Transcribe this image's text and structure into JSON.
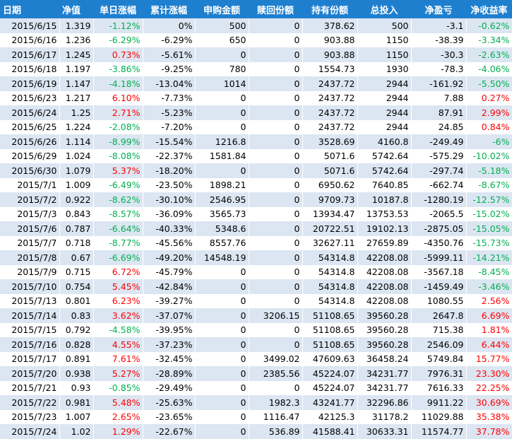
{
  "headers": [
    "日期",
    "净值",
    "单日涨幅",
    "累计涨幅",
    "申购金额",
    "赎回份额",
    "持有份额",
    "总投入",
    "净盈亏",
    "净收益率"
  ],
  "rows": [
    [
      "2015/6/15",
      "1.319",
      "-1.12%",
      "0%",
      "500",
      "0",
      "378.62",
      "500",
      "-3.1",
      "-0.62%"
    ],
    [
      "2015/6/16",
      "1.236",
      "-6.29%",
      "-6.29%",
      "650",
      "0",
      "903.88",
      "1150",
      "-38.39",
      "-3.34%"
    ],
    [
      "2015/6/17",
      "1.245",
      "0.73%",
      "-5.61%",
      "0",
      "0",
      "903.88",
      "1150",
      "-30.3",
      "-2.63%"
    ],
    [
      "2015/6/18",
      "1.197",
      "-3.86%",
      "-9.25%",
      "780",
      "0",
      "1554.73",
      "1930",
      "-78.3",
      "-4.06%"
    ],
    [
      "2015/6/19",
      "1.147",
      "-4.18%",
      "-13.04%",
      "1014",
      "0",
      "2437.72",
      "2944",
      "-161.92",
      "-5.50%"
    ],
    [
      "2015/6/23",
      "1.217",
      "6.10%",
      "-7.73%",
      "0",
      "0",
      "2437.72",
      "2944",
      "7.88",
      "0.27%"
    ],
    [
      "2015/6/24",
      "1.25",
      "2.71%",
      "-5.23%",
      "0",
      "0",
      "2437.72",
      "2944",
      "87.91",
      "2.99%"
    ],
    [
      "2015/6/25",
      "1.224",
      "-2.08%",
      "-7.20%",
      "0",
      "0",
      "2437.72",
      "2944",
      "24.85",
      "0.84%"
    ],
    [
      "2015/6/26",
      "1.114",
      "-8.99%",
      "-15.54%",
      "1216.8",
      "0",
      "3528.69",
      "4160.8",
      "-249.49",
      "-6%"
    ],
    [
      "2015/6/29",
      "1.024",
      "-8.08%",
      "-22.37%",
      "1581.84",
      "0",
      "5071.6",
      "5742.64",
      "-575.29",
      "-10.02%"
    ],
    [
      "2015/6/30",
      "1.079",
      "5.37%",
      "-18.20%",
      "0",
      "0",
      "5071.6",
      "5742.64",
      "-297.74",
      "-5.18%"
    ],
    [
      "2015/7/1",
      "1.009",
      "-6.49%",
      "-23.50%",
      "1898.21",
      "0",
      "6950.62",
      "7640.85",
      "-662.74",
      "-8.67%"
    ],
    [
      "2015/7/2",
      "0.922",
      "-8.62%",
      "-30.10%",
      "2546.95",
      "0",
      "9709.73",
      "10187.8",
      "-1280.19",
      "-12.57%"
    ],
    [
      "2015/7/3",
      "0.843",
      "-8.57%",
      "-36.09%",
      "3565.73",
      "0",
      "13934.47",
      "13753.53",
      "-2065.5",
      "-15.02%"
    ],
    [
      "2015/7/6",
      "0.787",
      "-6.64%",
      "-40.33%",
      "5348.6",
      "0",
      "20722.51",
      "19102.13",
      "-2875.05",
      "-15.05%"
    ],
    [
      "2015/7/7",
      "0.718",
      "-8.77%",
      "-45.56%",
      "8557.76",
      "0",
      "32627.11",
      "27659.89",
      "-4350.76",
      "-15.73%"
    ],
    [
      "2015/7/8",
      "0.67",
      "-6.69%",
      "-49.20%",
      "14548.19",
      "0",
      "54314.8",
      "42208.08",
      "-5999.11",
      "-14.21%"
    ],
    [
      "2015/7/9",
      "0.715",
      "6.72%",
      "-45.79%",
      "0",
      "0",
      "54314.8",
      "42208.08",
      "-3567.18",
      "-8.45%"
    ],
    [
      "2015/7/10",
      "0.754",
      "5.45%",
      "-42.84%",
      "0",
      "0",
      "54314.8",
      "42208.08",
      "-1459.49",
      "-3.46%"
    ],
    [
      "2015/7/13",
      "0.801",
      "6.23%",
      "-39.27%",
      "0",
      "0",
      "54314.8",
      "42208.08",
      "1080.55",
      "2.56%"
    ],
    [
      "2015/7/14",
      "0.83",
      "3.62%",
      "-37.07%",
      "0",
      "3206.15",
      "51108.65",
      "39560.28",
      "2647.8",
      "6.69%"
    ],
    [
      "2015/7/15",
      "0.792",
      "-4.58%",
      "-39.95%",
      "0",
      "0",
      "51108.65",
      "39560.28",
      "715.38",
      "1.81%"
    ],
    [
      "2015/7/16",
      "0.828",
      "4.55%",
      "-37.23%",
      "0",
      "0",
      "51108.65",
      "39560.28",
      "2546.09",
      "6.44%"
    ],
    [
      "2015/7/17",
      "0.891",
      "7.61%",
      "-32.45%",
      "0",
      "3499.02",
      "47609.63",
      "36458.24",
      "5749.84",
      "15.77%"
    ],
    [
      "2015/7/20",
      "0.938",
      "5.27%",
      "-28.89%",
      "0",
      "2385.56",
      "45224.07",
      "34231.77",
      "7976.31",
      "23.30%"
    ],
    [
      "2015/7/21",
      "0.93",
      "-0.85%",
      "-29.49%",
      "0",
      "0",
      "45224.07",
      "34231.77",
      "7616.33",
      "22.25%"
    ],
    [
      "2015/7/22",
      "0.981",
      "5.48%",
      "-25.63%",
      "0",
      "1982.3",
      "43241.77",
      "32296.86",
      "9911.22",
      "30.69%"
    ],
    [
      "2015/7/23",
      "1.007",
      "2.65%",
      "-23.65%",
      "0",
      "1116.47",
      "42125.3",
      "31178.2",
      "11029.88",
      "35.38%"
    ],
    [
      "2015/7/24",
      "1.02",
      "1.29%",
      "-22.67%",
      "0",
      "536.89",
      "41588.41",
      "30633.31",
      "11574.77",
      "37.78%"
    ]
  ]
}
